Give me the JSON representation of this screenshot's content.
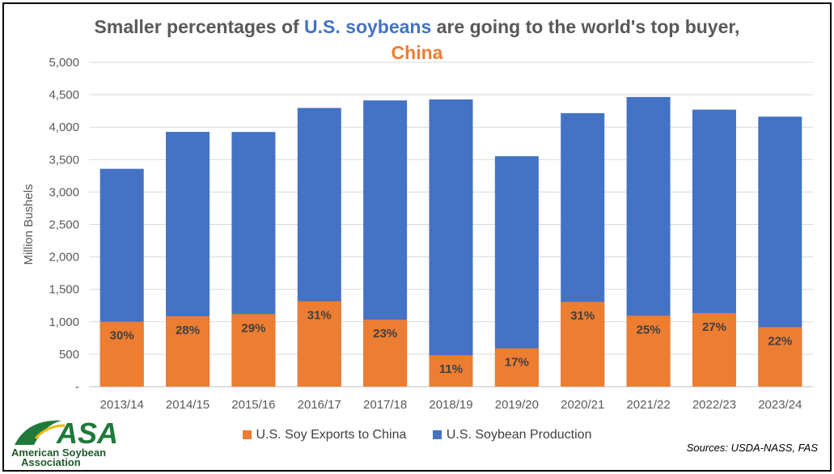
{
  "title_parts": {
    "pre": "Smaller percentages of ",
    "highlight": "U.S. soybeans",
    "post": " are going to the world's top buyer,",
    "line2": "China"
  },
  "colors": {
    "production": "#4472C4",
    "exports": "#ED7D31",
    "title_gray": "#595959",
    "axis_text": "#595959",
    "grid": "#D9D9D9"
  },
  "chart_data": {
    "type": "bar",
    "stacked": "overlay",
    "ylabel": "Million Bushels",
    "ylim": [
      0,
      5000
    ],
    "yticks": [
      0,
      500,
      1000,
      1500,
      2000,
      2500,
      3000,
      3500,
      4000,
      4500,
      5000
    ],
    "ytick_labels": [
      "-",
      "500",
      "1,000",
      "1,500",
      "2,000",
      "2,500",
      "3,000",
      "3,500",
      "4,000",
      "4,500",
      "5,000"
    ],
    "grid": true,
    "legend": "bottom",
    "categories": [
      "2013/14",
      "2014/15",
      "2015/16",
      "2016/17",
      "2017/18",
      "2018/19",
      "2019/20",
      "2020/21",
      "2021/22",
      "2022/23",
      "2023/24"
    ],
    "series": [
      {
        "name": "U.S. Soybean Production",
        "values": [
          3358,
          3927,
          3926,
          4296,
          4412,
          4428,
          3552,
          4216,
          4465,
          4270,
          4162
        ]
      },
      {
        "name": "U.S. Soy Exports to China",
        "values": [
          1001,
          1085,
          1119,
          1317,
          1033,
          484,
          590,
          1307,
          1094,
          1135,
          916
        ]
      }
    ],
    "data_labels": [
      "30%",
      "28%",
      "29%",
      "31%",
      "23%",
      "11%",
      "17%",
      "31%",
      "25%",
      "27%",
      "22%"
    ]
  },
  "legend": {
    "exports_label": "U.S. Soy Exports to China",
    "production_label": "U.S. Soybean Production"
  },
  "source": "Sources: USDA-NASS, FAS",
  "logo": {
    "mark": "ASA",
    "name_line1": "American Soybean",
    "name_line2": "Association"
  }
}
